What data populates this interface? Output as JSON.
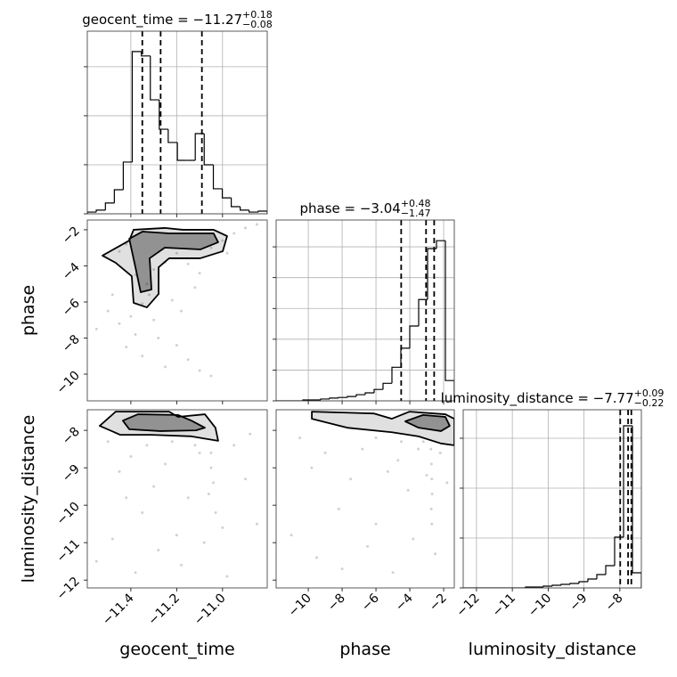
{
  "chart_data": [
    {
      "type": "histogram",
      "title": "geocent_time = −11.27",
      "title_upper": "+0.18",
      "title_lower": "−0.08",
      "color": "#000000",
      "grid": true,
      "bins": [
        -11.59,
        -11.551,
        -11.511,
        -11.472,
        -11.433,
        -11.394,
        -11.354,
        -11.315,
        -11.276,
        -11.237,
        -11.197,
        -11.158,
        -11.119,
        -11.08,
        -11.04,
        -11.001,
        -10.962,
        -10.923,
        -10.884,
        -10.844,
        -10.805
      ],
      "values": [
        7,
        15,
        44,
        98,
        211,
        662,
        644,
        465,
        345,
        291,
        218,
        218,
        327,
        200,
        102,
        65,
        29,
        15,
        7,
        11
      ],
      "quantiles": [
        -11.35,
        -11.27,
        -11.09
      ],
      "xlim": [
        -11.59,
        -10.805
      ],
      "xticks": [
        -11.4,
        -11.2,
        -11.0
      ],
      "ylim": [
        0,
        745
      ],
      "yticks": [
        0,
        200,
        400,
        600
      ]
    },
    {
      "type": "scatter",
      "color": "#000000",
      "ylabel": "phase",
      "x": [
        -11.45,
        -11.42,
        -11.38,
        -11.33,
        -11.3,
        -11.25,
        -11.2,
        -11.15,
        -11.1,
        -11.05,
        -10.95,
        -10.9,
        -10.85,
        -11.5,
        -11.45,
        -11.4,
        -11.38,
        -11.35,
        -11.3,
        -11.28,
        -11.2,
        -11.15,
        -11.1,
        -11.05,
        -11.55,
        -11.48,
        -11.22,
        -11.18,
        -11.12,
        -11.0,
        -10.98,
        -11.35,
        -11.42,
        -11.25,
        -11.32
      ],
      "y": [
        -3.2,
        -2.8,
        -4.5,
        -5.0,
        -4.2,
        -3.8,
        -3.3,
        -3.9,
        -4.4,
        -3.0,
        -2.2,
        -1.9,
        -1.7,
        -6.5,
        -7.2,
        -6.8,
        -7.8,
        -6.1,
        -7.0,
        -8.0,
        -8.4,
        -9.2,
        -9.8,
        -10.1,
        -7.5,
        -5.6,
        -5.9,
        -6.5,
        -5.2,
        -2.6,
        -3.3,
        -9.0,
        -8.5,
        -9.6,
        -5.6
      ],
      "contours": [
        {
          "x": [
            -11.524,
            -11.407,
            -11.388,
            -11.252,
            -11.174,
            -11.039,
            -10.98,
            -10.999,
            -11.097,
            -11.233,
            -11.279,
            -11.279,
            -11.33,
            -11.388,
            -11.396,
            -11.466
          ],
          "y": [
            -3.43,
            -2.6,
            -2.0,
            -1.9,
            -2.0,
            -2.0,
            -2.35,
            -3.19,
            -3.58,
            -3.58,
            -4.08,
            -5.56,
            -6.3,
            -6.05,
            -4.57,
            -3.83
          ]
        },
        {
          "x": [
            -11.407,
            -11.349,
            -11.233,
            -11.136,
            -11.039,
            -11.019,
            -11.097,
            -11.252,
            -11.318,
            -11.31,
            -11.357,
            -11.38
          ],
          "y": [
            -2.5,
            -2.1,
            -2.2,
            -2.2,
            -2.2,
            -2.69,
            -3.09,
            -2.99,
            -3.58,
            -5.31,
            -5.46,
            -4.08
          ]
        }
      ],
      "xlim": [
        -11.59,
        -10.805
      ],
      "xticks": [
        -11.4,
        -11.2,
        -11.0
      ],
      "ylim": [
        -11.48,
        -1.46
      ],
      "yticks": [
        {
          "value": -2,
          "label": "−2"
        },
        {
          "value": -4,
          "label": "−4"
        },
        {
          "value": -6,
          "label": "−6"
        },
        {
          "value": -8,
          "label": "−8"
        },
        {
          "value": -10,
          "label": "−10"
        }
      ]
    },
    {
      "type": "histogram",
      "title": "phase = −3.04",
      "title_upper": "+0.48",
      "title_lower": "−1.47",
      "color": "#000000",
      "grid": true,
      "bins": [
        -11.9,
        -11.374,
        -10.847,
        -10.321,
        -9.794,
        -9.268,
        -8.741,
        -8.215,
        -7.688,
        -7.162,
        -6.635,
        -6.109,
        -5.582,
        -5.056,
        -4.529,
        -4.003,
        -3.476,
        -2.95,
        -2.423,
        -1.897,
        -1.37
      ],
      "values": [
        0,
        0,
        0,
        3,
        3,
        6,
        9,
        11,
        14,
        20,
        26,
        37,
        57,
        109,
        171,
        243,
        329,
        494,
        520,
        66
      ],
      "quantiles": [
        -4.51,
        -3.04,
        -2.56
      ],
      "xlim": [
        -11.9,
        -1.37
      ],
      "xticks": [
        -10,
        -8,
        -6,
        -4,
        -2
      ],
      "ylim": [
        0,
        587
      ],
      "yticks": [
        0,
        100,
        200,
        300,
        400,
        500
      ]
    },
    {
      "type": "scatter",
      "color": "#000000",
      "xlabel": "geocent_time",
      "ylabel": "luminosity_distance",
      "x": [
        -11.5,
        -11.45,
        -11.4,
        -11.35,
        -11.3,
        -11.25,
        -11.2,
        -11.15,
        -11.1,
        -11.05,
        -11.05,
        -11.04,
        -11.06,
        -11.03,
        -10.95,
        -10.9,
        -10.85,
        -11.55,
        -11.48,
        -11.38,
        -11.28,
        -11.18,
        -11.08,
        -10.98,
        -11.33,
        -11.22,
        -11.12,
        -10.88,
        -11.42,
        -11.0
      ],
      "y": [
        -8.3,
        -9.1,
        -8.7,
        -10.2,
        -9.5,
        -8.9,
        -10.8,
        -9.8,
        -8.6,
        -8.6,
        -9.0,
        -9.4,
        -9.7,
        -10.2,
        -8.4,
        -9.3,
        -10.5,
        -11.5,
        -10.9,
        -11.8,
        -11.2,
        -11.6,
        -11.0,
        -11.9,
        -8.4,
        -8.3,
        -8.4,
        -8.1,
        -9.8,
        -10.6
      ],
      "contours": [
        {
          "x": [
            -11.536,
            -11.466,
            -11.233,
            -11.194,
            -11.077,
            -11.031,
            -11.019,
            -11.136,
            -11.31,
            -11.446
          ],
          "y": [
            -7.88,
            -7.5,
            -7.5,
            -7.64,
            -7.57,
            -7.93,
            -8.28,
            -8.16,
            -8.12,
            -8.12
          ]
        },
        {
          "x": [
            -11.435,
            -11.369,
            -11.194,
            -11.136,
            -11.077,
            -11.116,
            -11.272,
            -11.407
          ],
          "y": [
            -7.74,
            -7.57,
            -7.59,
            -7.74,
            -7.93,
            -8.0,
            -8.02,
            -7.97
          ]
        }
      ],
      "xlim": [
        -11.59,
        -10.805
      ],
      "xticks": [
        {
          "value": -11.4,
          "label": "−11.4"
        },
        {
          "value": -11.2,
          "label": "−11.2"
        },
        {
          "value": -11.0,
          "label": "−11.0"
        }
      ],
      "ylim": [
        -12.21,
        -7.45
      ],
      "yticks": [
        {
          "value": -8,
          "label": "−8"
        },
        {
          "value": -9,
          "label": "−9"
        },
        {
          "value": -10,
          "label": "−10"
        },
        {
          "value": -11,
          "label": "−11"
        },
        {
          "value": -12,
          "label": "−12"
        }
      ]
    },
    {
      "type": "scatter",
      "color": "#000000",
      "xlabel": "phase",
      "x": [
        -10.5,
        -9.8,
        -9.0,
        -8.2,
        -7.5,
        -6.8,
        -6.0,
        -5.3,
        -4.7,
        -4.1,
        -3.5,
        -3.0,
        -2.75,
        -2.72,
        -2.7,
        -2.68,
        -2.73,
        -2.7,
        -2.2,
        -1.8,
        -11.0,
        -9.5,
        -8.0,
        -6.5,
        -5.0,
        -3.8,
        -2.5,
        -4.5,
        -6.0,
        -3.2
      ],
      "y": [
        -8.2,
        -9.0,
        -8.6,
        -10.1,
        -9.3,
        -8.5,
        -10.5,
        -9.1,
        -8.8,
        -9.6,
        -8.5,
        -9.2,
        -8.5,
        -8.9,
        -9.3,
        -9.7,
        -10.1,
        -10.5,
        -8.6,
        -9.4,
        -10.8,
        -11.4,
        -11.7,
        -11.1,
        -11.8,
        -10.9,
        -11.3,
        -8.3,
        -8.2,
        -8.3
      ],
      "contours": [
        {
          "x": [
            -9.79,
            -6.11,
            -5.06,
            -4.01,
            -1.9,
            -1.37,
            -1.37,
            -2.16,
            -3.48,
            -5.06,
            -7.69,
            -9.79
          ],
          "y": [
            -7.5,
            -7.55,
            -7.69,
            -7.5,
            -7.57,
            -7.69,
            -8.4,
            -8.35,
            -8.16,
            -8.05,
            -7.93,
            -7.69
          ]
        },
        {
          "x": [
            -4.27,
            -3.22,
            -1.9,
            -1.64,
            -2.16,
            -3.48
          ],
          "y": [
            -7.76,
            -7.59,
            -7.64,
            -7.88,
            -8.02,
            -7.93
          ]
        }
      ],
      "xlim": [
        -11.9,
        -1.37
      ],
      "xticks": [
        {
          "value": -10,
          "label": "−10"
        },
        {
          "value": -8,
          "label": "−8"
        },
        {
          "value": -6,
          "label": "−6"
        },
        {
          "value": -4,
          "label": "−4"
        },
        {
          "value": -2,
          "label": "−2"
        }
      ],
      "ylim": [
        -12.21,
        -7.45
      ],
      "yticks": [
        -8,
        -9,
        -10,
        -11,
        -12
      ]
    },
    {
      "type": "histogram",
      "title": "luminosity_distance = −7.77",
      "title_upper": "+0.09",
      "title_lower": "−0.22",
      "color": "#000000",
      "grid": true,
      "xlabel": "luminosity_distance",
      "bins": [
        -12.37,
        -12.122,
        -11.873,
        -11.625,
        -11.376,
        -11.128,
        -10.879,
        -10.631,
        -10.382,
        -10.134,
        -9.885,
        -9.637,
        -9.388,
        -9.14,
        -8.891,
        -8.643,
        -8.394,
        -8.146,
        -7.897,
        -7.649,
        -7.4
      ],
      "values": [
        0,
        0,
        0,
        0,
        0,
        0,
        0,
        18,
        18,
        36,
        54,
        71,
        89,
        125,
        179,
        268,
        446,
        1018,
        3250,
        304
      ],
      "quantiles": [
        -7.99,
        -7.77,
        -7.68
      ],
      "xlim": [
        -12.37,
        -7.4
      ],
      "xticks": [
        {
          "value": -12,
          "label": "−12"
        },
        {
          "value": -11,
          "label": "−11"
        },
        {
          "value": -10,
          "label": "−10"
        },
        {
          "value": -9,
          "label": "−9"
        },
        {
          "value": -8,
          "label": "−8"
        }
      ],
      "ylim": [
        0,
        3571
      ],
      "yticks": [
        0,
        1000,
        2000,
        3000
      ]
    }
  ]
}
